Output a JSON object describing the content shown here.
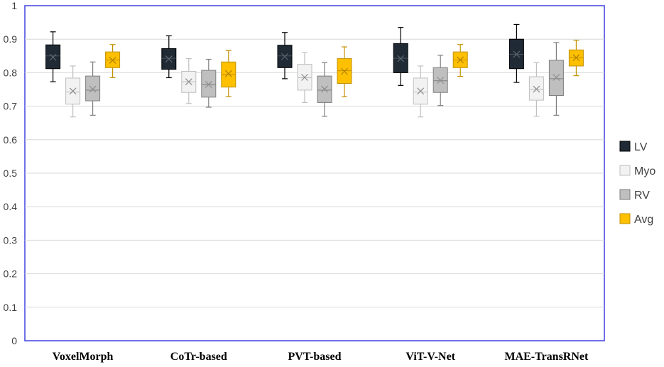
{
  "chart_data": {
    "type": "box",
    "title": "",
    "xlabel": "",
    "ylabel": "",
    "ylim": [
      0,
      1
    ],
    "yticks": [
      "0",
      "0.1",
      "0.2",
      "0.3",
      "0.4",
      "0.5",
      "0.6",
      "0.7",
      "0.8",
      "0.9",
      "1"
    ],
    "grid": true,
    "legend_position": "right",
    "categories": [
      "VoxelMorph",
      "CoTr-based",
      "PVT-based",
      "ViT-V-Net",
      "MAE-TransRNet"
    ],
    "series": [
      {
        "name": "LV",
        "color": "#1f2a35",
        "stroke": "#000000",
        "boxes": [
          {
            "min": 0.773,
            "q1": 0.812,
            "median": 0.85,
            "mean": 0.846,
            "q3": 0.883,
            "max": 0.922
          },
          {
            "min": 0.785,
            "q1": 0.81,
            "median": 0.843,
            "mean": 0.841,
            "q3": 0.872,
            "max": 0.91
          },
          {
            "min": 0.782,
            "q1": 0.815,
            "median": 0.85,
            "mean": 0.848,
            "q3": 0.882,
            "max": 0.92
          },
          {
            "min": 0.762,
            "q1": 0.8,
            "median": 0.843,
            "mean": 0.842,
            "q3": 0.887,
            "max": 0.935
          },
          {
            "min": 0.771,
            "q1": 0.812,
            "median": 0.855,
            "mean": 0.855,
            "q3": 0.9,
            "max": 0.944
          }
        ]
      },
      {
        "name": "Myo",
        "color": "#f2f2f2",
        "stroke": "#bfbfbf",
        "boxes": [
          {
            "min": 0.668,
            "q1": 0.706,
            "median": 0.742,
            "mean": 0.745,
            "q3": 0.784,
            "max": 0.82
          },
          {
            "min": 0.708,
            "q1": 0.741,
            "median": 0.773,
            "mean": 0.773,
            "q3": 0.804,
            "max": 0.842
          },
          {
            "min": 0.711,
            "q1": 0.748,
            "median": 0.785,
            "mean": 0.786,
            "q3": 0.825,
            "max": 0.86
          },
          {
            "min": 0.668,
            "q1": 0.706,
            "median": 0.742,
            "mean": 0.745,
            "q3": 0.784,
            "max": 0.82
          },
          {
            "min": 0.67,
            "q1": 0.718,
            "median": 0.75,
            "mean": 0.751,
            "q3": 0.788,
            "max": 0.83
          }
        ]
      },
      {
        "name": "RV",
        "color": "#bfbfbf",
        "stroke": "#7f7f7f",
        "boxes": [
          {
            "min": 0.673,
            "q1": 0.716,
            "median": 0.748,
            "mean": 0.751,
            "q3": 0.79,
            "max": 0.832
          },
          {
            "min": 0.697,
            "q1": 0.727,
            "median": 0.764,
            "mean": 0.765,
            "q3": 0.807,
            "max": 0.84
          },
          {
            "min": 0.67,
            "q1": 0.711,
            "median": 0.748,
            "mean": 0.751,
            "q3": 0.79,
            "max": 0.83
          },
          {
            "min": 0.702,
            "q1": 0.741,
            "median": 0.776,
            "mean": 0.777,
            "q3": 0.815,
            "max": 0.852
          },
          {
            "min": 0.673,
            "q1": 0.732,
            "median": 0.782,
            "mean": 0.786,
            "q3": 0.837,
            "max": 0.89
          }
        ]
      },
      {
        "name": "Avg",
        "color": "#ffc000",
        "stroke": "#c09000",
        "boxes": [
          {
            "min": 0.785,
            "q1": 0.815,
            "median": 0.838,
            "mean": 0.837,
            "q3": 0.862,
            "max": 0.884
          },
          {
            "min": 0.729,
            "q1": 0.757,
            "median": 0.795,
            "mean": 0.797,
            "q3": 0.832,
            "max": 0.866
          },
          {
            "min": 0.728,
            "q1": 0.768,
            "median": 0.806,
            "mean": 0.804,
            "q3": 0.842,
            "max": 0.877
          },
          {
            "min": 0.789,
            "q1": 0.815,
            "median": 0.838,
            "mean": 0.838,
            "q3": 0.862,
            "max": 0.884
          },
          {
            "min": 0.791,
            "q1": 0.82,
            "median": 0.845,
            "mean": 0.845,
            "q3": 0.868,
            "max": 0.897
          }
        ]
      }
    ]
  }
}
